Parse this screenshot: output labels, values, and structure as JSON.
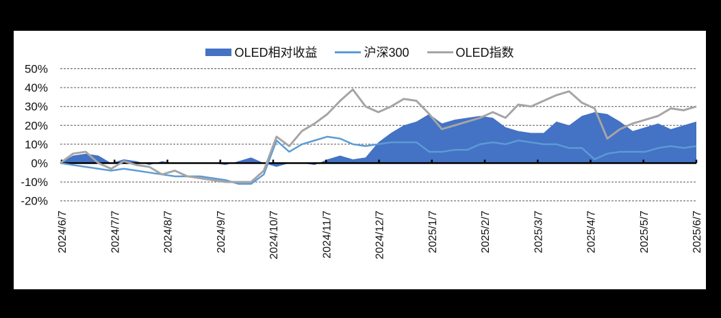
{
  "chart_data": {
    "type": "area+line",
    "title": "",
    "xlabel": "",
    "ylabel": "",
    "ylim": [
      -20,
      50
    ],
    "y_ticks": [
      "50%",
      "40%",
      "30%",
      "20%",
      "10%",
      "0%",
      "-10%",
      "-20%"
    ],
    "y_tick_values": [
      50,
      40,
      30,
      20,
      10,
      0,
      -10,
      -20
    ],
    "x_tick_labels": [
      "2024/6/7",
      "2024/7/7",
      "2024/8/7",
      "2024/9/7",
      "2024/10/7",
      "2024/11/7",
      "2024/12/7",
      "2025/1/7",
      "2025/2/7",
      "2025/3/7",
      "2025/4/7",
      "2025/5/7",
      "2025/6/7"
    ],
    "grid": "horizontal dashed",
    "legend_position": "top",
    "x": [
      0,
      0.02,
      0.04,
      0.06,
      0.08,
      0.1,
      0.12,
      0.14,
      0.16,
      0.18,
      0.2,
      0.22,
      0.24,
      0.26,
      0.28,
      0.3,
      0.32,
      0.34,
      0.36,
      0.38,
      0.4,
      0.42,
      0.44,
      0.46,
      0.48,
      0.5,
      0.52,
      0.54,
      0.56,
      0.58,
      0.6,
      0.62,
      0.64,
      0.66,
      0.68,
      0.7,
      0.72,
      0.74,
      0.76,
      0.78,
      0.8,
      0.82,
      0.84,
      0.86,
      0.88,
      0.9,
      0.92,
      0.94,
      0.96,
      0.98,
      1.0
    ],
    "series": [
      {
        "name": "OLED相对收益",
        "kind": "area",
        "color": "#4472C4",
        "values": [
          0,
          4,
          5,
          4,
          0,
          2,
          1,
          -1,
          1,
          0,
          0,
          0,
          0,
          -1,
          1,
          3,
          0,
          -2,
          0,
          0,
          -1,
          2,
          4,
          2,
          3,
          11,
          16,
          20,
          22,
          26,
          21,
          23,
          24,
          25,
          24,
          19,
          17,
          16,
          16,
          22,
          20,
          25,
          27,
          26,
          22,
          17,
          19,
          21,
          18,
          20,
          22
        ]
      },
      {
        "name": "沪深300",
        "kind": "line",
        "color": "#5B9BD5",
        "values": [
          0,
          -1,
          -2,
          -3,
          -4,
          -3,
          -4,
          -5,
          -6,
          -7,
          -7,
          -7,
          -8,
          -9,
          -11,
          -11,
          -6,
          12,
          6,
          10,
          12,
          14,
          13,
          10,
          9,
          10,
          11,
          11,
          11,
          6,
          6,
          7,
          7,
          10,
          11,
          10,
          12,
          11,
          10,
          10,
          8,
          8,
          2,
          5,
          6,
          6,
          6,
          8,
          9,
          8,
          9
        ]
      },
      {
        "name": "OLED指数",
        "kind": "line",
        "color": "#A5A5A5",
        "values": [
          0,
          5,
          6,
          0,
          -3,
          1,
          -1,
          -2,
          -6,
          -4,
          -7,
          -8,
          -9,
          -10,
          -10,
          -10,
          -4,
          14,
          9,
          17,
          21,
          26,
          33,
          39,
          30,
          27,
          30,
          34,
          33,
          26,
          18,
          20,
          22,
          24,
          27,
          24,
          31,
          30,
          33,
          36,
          38,
          32,
          29,
          13,
          18,
          21,
          23,
          25,
          29,
          28,
          30
        ]
      }
    ]
  },
  "legend": {
    "items": [
      {
        "label": "OLED相对收益",
        "color": "#4472C4",
        "style": "box"
      },
      {
        "label": "沪深300",
        "color": "#5B9BD5",
        "style": "line"
      },
      {
        "label": "OLED指数",
        "color": "#A5A5A5",
        "style": "line"
      }
    ]
  }
}
